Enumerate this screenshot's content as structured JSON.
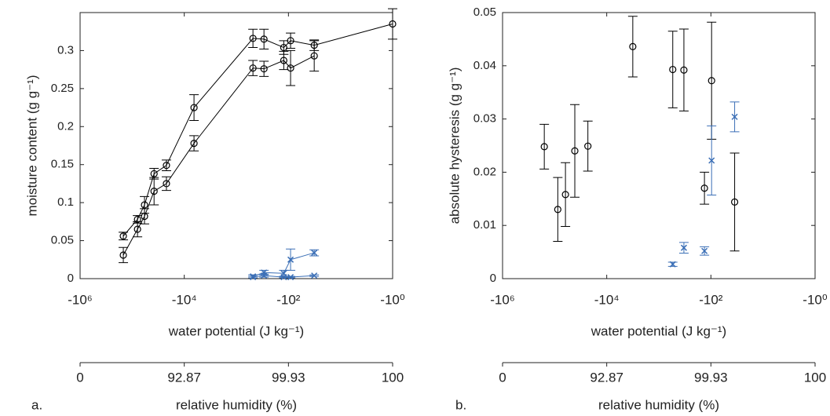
{
  "chart_data": [
    {
      "type": "scatter",
      "panel_label": "a.",
      "xlabel": "water potential (J kg⁻¹)",
      "ylabel": "moisture content (g g⁻¹)",
      "xscale": "log",
      "xlim": [
        -1000000,
        -1
      ],
      "xticks": [
        {
          "value": -1000000,
          "label": "-10⁶"
        },
        {
          "value": -10000,
          "label": "-10⁴"
        },
        {
          "value": -100,
          "label": "-10²"
        },
        {
          "value": -1,
          "label": "-10⁰"
        }
      ],
      "ylim": [
        0,
        0.35
      ],
      "yticks": [
        0,
        0.05,
        0.1,
        0.15,
        0.2,
        0.25,
        0.3
      ],
      "x2label": "relative humidity (%)",
      "x2ticks": [
        {
          "value": -1000000,
          "label": "0"
        },
        {
          "value": -10000,
          "label": "92.87"
        },
        {
          "value": -100,
          "label": "99.93"
        },
        {
          "value": -1,
          "label": "100"
        }
      ],
      "series": [
        {
          "color": "#000000",
          "marker": "circle",
          "line": true,
          "x": [
            -148000,
            -79000,
            -58000,
            -38000,
            -22000,
            -6500,
            -480,
            -295,
            -123,
            -91,
            -32,
            -1
          ],
          "values": [
            0.056,
            0.078,
            0.097,
            0.138,
            0.149,
            0.225,
            0.316,
            0.315,
            0.304,
            0.313,
            0.307,
            0.335
          ],
          "errors": [
            0.005,
            0.005,
            0.011,
            0.007,
            0.007,
            0.017,
            0.012,
            0.013,
            0.009,
            0.01,
            0.007,
            0.02
          ]
        },
        {
          "color": "#000000",
          "marker": "circle",
          "line": true,
          "x": [
            -148000,
            -79000,
            -58000,
            -38000,
            -22000,
            -6500,
            -480,
            -295,
            -123,
            -91,
            -32
          ],
          "values": [
            0.031,
            0.065,
            0.082,
            0.115,
            0.125,
            0.178,
            0.277,
            0.276,
            0.287,
            0.277,
            0.293
          ],
          "errors": [
            0.01,
            0.01,
            0.01,
            0.018,
            0.009,
            0.01,
            0.01,
            0.01,
            0.012,
            0.023,
            0.02
          ]
        },
        {
          "color": "#3b6fb6",
          "marker": "cross",
          "line": true,
          "x": [
            -480,
            -295,
            -123,
            -91,
            -32
          ],
          "values": [
            0.003,
            0.008,
            0.007,
            0.025,
            0.034
          ],
          "errors": [
            0.002,
            0.003,
            0.004,
            0.014,
            0.004
          ]
        },
        {
          "color": "#3b6fb6",
          "marker": "cross",
          "line": true,
          "x": [
            -480,
            -295,
            -123,
            -91,
            -32
          ],
          "values": [
            0.002,
            0.004,
            0.002,
            0.002,
            0.004
          ],
          "errors": [
            0.001,
            0.002,
            0.001,
            0.001,
            0.001
          ]
        }
      ]
    },
    {
      "type": "scatter",
      "panel_label": "b.",
      "xlabel": "water potential (J kg⁻¹)",
      "ylabel": "absolute hysteresis (g g⁻¹)",
      "xscale": "log",
      "xlim": [
        -1000000,
        -1
      ],
      "xticks": [
        {
          "value": -1000000,
          "label": "-10⁶"
        },
        {
          "value": -10000,
          "label": "-10⁴"
        },
        {
          "value": -100,
          "label": "-10²"
        },
        {
          "value": -1,
          "label": "-10⁰"
        }
      ],
      "ylim": [
        0,
        0.05
      ],
      "yticks": [
        0,
        0.01,
        0.02,
        0.03,
        0.04,
        0.05
      ],
      "x2label": "relative humidity (%)",
      "x2ticks": [
        {
          "value": -1000000,
          "label": "0"
        },
        {
          "value": -10000,
          "label": "92.87"
        },
        {
          "value": -100,
          "label": "99.93"
        },
        {
          "value": -1,
          "label": "100"
        }
      ],
      "series": [
        {
          "color": "#000000",
          "marker": "circle",
          "line": false,
          "x": [
            -158000,
            -87000,
            -62000,
            -41000,
            -23000,
            -3160,
            -540,
            -330,
            -133,
            -97,
            -35
          ],
          "values": [
            0.0248,
            0.013,
            0.0158,
            0.024,
            0.0249,
            0.0436,
            0.0393,
            0.0392,
            0.017,
            0.0372,
            0.0144
          ],
          "errors": [
            0.0042,
            0.006,
            0.006,
            0.0087,
            0.0047,
            0.0057,
            0.0072,
            0.0077,
            0.003,
            0.011,
            0.0092
          ]
        },
        {
          "color": "#3b6fb6",
          "marker": "cross",
          "line": false,
          "x": [
            -540,
            -330,
            -133,
            -97,
            -35
          ],
          "values": [
            0.0027,
            0.0058,
            0.0052,
            0.0222,
            0.0304
          ],
          "errors": [
            0.0004,
            0.001,
            0.0008,
            0.0065,
            0.0028
          ]
        }
      ]
    }
  ]
}
